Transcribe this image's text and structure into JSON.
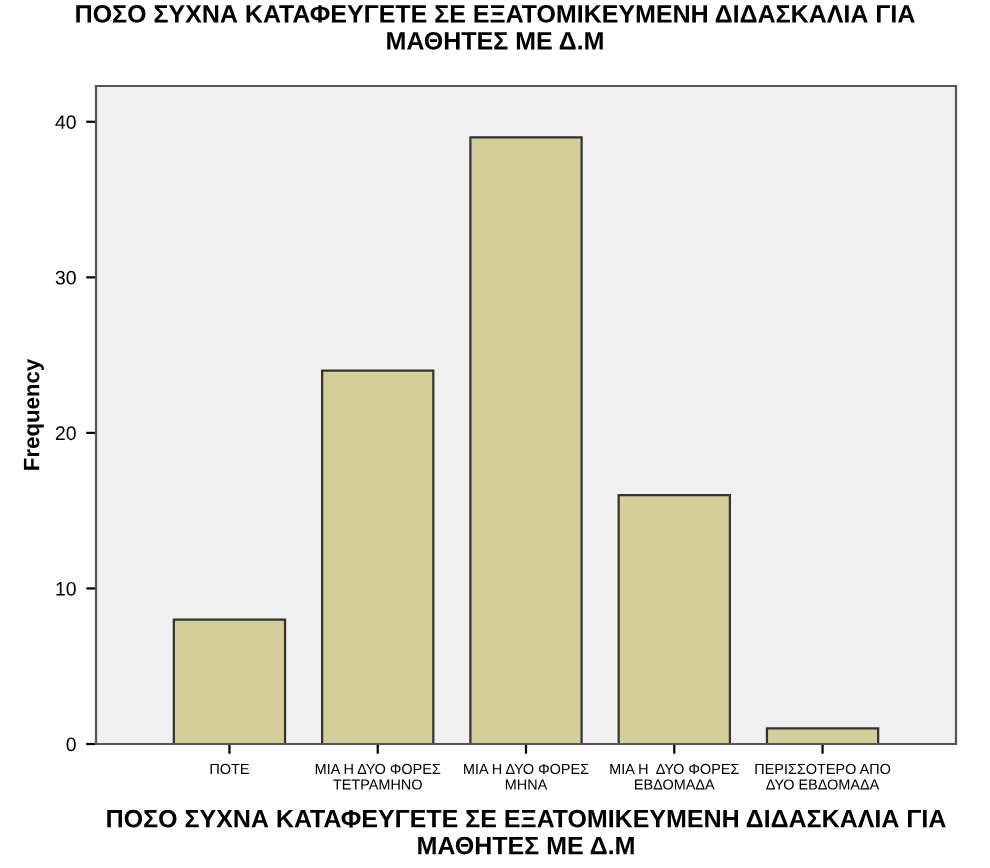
{
  "chart_data": {
    "type": "bar",
    "title": "ΠΟΣΟ ΣΥΧΝΑ ΚΑΤΑΦΕΥΓΕΤΕ ΣΕ ΕΞΑΤΟΜΙΚΕΥΜΕΝΗ ΔΙΔΑΣΚΑΛΙΑ ΓΙΑ\nΜΑΘΗΤΕΣ ΜΕ Δ.Μ",
    "xlabel": "ΠΟΣΟ ΣΥΧΝΑ ΚΑΤΑΦΕΥΓΕΤΕ ΣΕ ΕΞΑΤΟΜΙΚΕΥΜΕΝΗ ΔΙΔΑΣΚΑΛΙΑ ΓΙΑ\nΜΑΘΗΤΕΣ ΜΕ Δ.Μ",
    "ylabel": "Frequency",
    "categories": [
      "ΠΟΤΕ",
      "ΜΙΑ Η ΔΥΟ ΦΟΡΕΣ\nΤΕΤΡΑΜΗΝΟ",
      "ΜΙΑ Η ΔΥΟ ΦΟΡΕΣ\nΜΗΝΑ",
      "ΜΙΑ Η  ΔΥΟ ΦΟΡΕΣ\nΕΒΔΟΜΑΔΑ",
      "ΠΕΡΙΣΣΟΤΕΡΟ ΑΠΟ\nΔΥΟ ΕΒΔΟΜΑΔΑ"
    ],
    "values": [
      8,
      24,
      39,
      16,
      1
    ],
    "color": "#d3ce9a",
    "ylim": [
      0,
      42.3
    ],
    "yticks": [
      0,
      10,
      20,
      30,
      40
    ],
    "grid": false,
    "legend": false
  }
}
